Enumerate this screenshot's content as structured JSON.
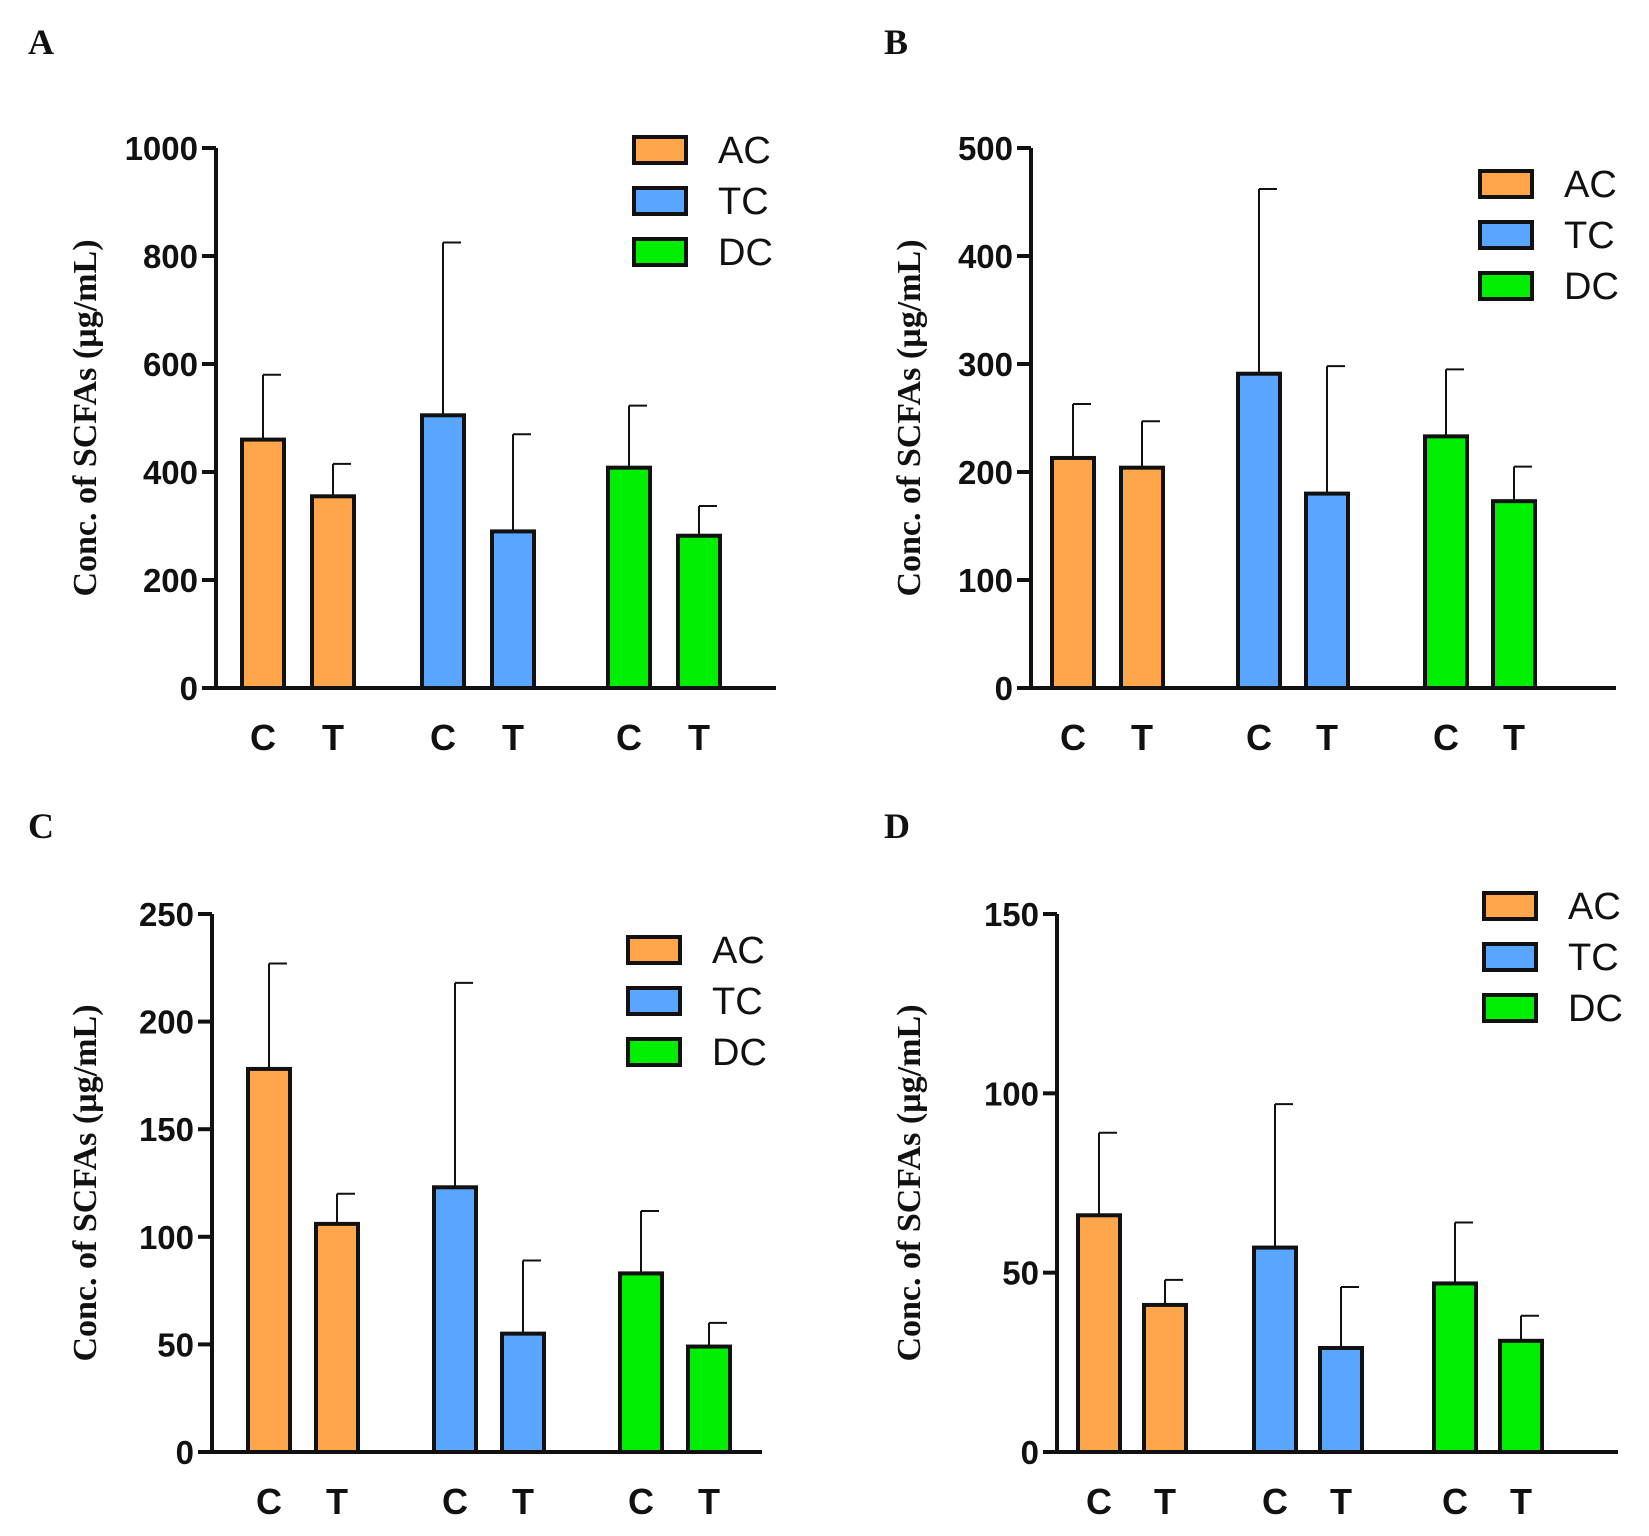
{
  "colors": {
    "AC": "#FFA54A",
    "TC": "#58A6FF",
    "DC": "#00EE00",
    "stroke": "#111111"
  },
  "panels": [
    {
      "letter": "A",
      "ylabel": "Conc. of SCFAs (µg/mL)",
      "chart_data": {
        "type": "bar",
        "ylim": [
          0,
          1000
        ],
        "yticks": [
          0,
          200,
          400,
          600,
          800,
          1000
        ],
        "legend": [
          "AC",
          "TC",
          "DC"
        ],
        "legend_position": "top-right",
        "bars": [
          {
            "group": "AC",
            "label": "C",
            "value": 460,
            "error": 120
          },
          {
            "group": "AC",
            "label": "T",
            "value": 355,
            "error": 60
          },
          {
            "group": "TC",
            "label": "C",
            "value": 505,
            "error": 320
          },
          {
            "group": "TC",
            "label": "T",
            "value": 290,
            "error": 180
          },
          {
            "group": "DC",
            "label": "C",
            "value": 408,
            "error": 115
          },
          {
            "group": "DC",
            "label": "T",
            "value": 282,
            "error": 55
          }
        ]
      }
    },
    {
      "letter": "B",
      "ylabel": "Conc. of SCFAs (µg/mL)",
      "chart_data": {
        "type": "bar",
        "ylim": [
          0,
          500
        ],
        "yticks": [
          0,
          100,
          200,
          300,
          400,
          500
        ],
        "legend": [
          "AC",
          "TC",
          "DC"
        ],
        "legend_position": "top-right",
        "bars": [
          {
            "group": "AC",
            "label": "C",
            "value": 213,
            "error": 50
          },
          {
            "group": "AC",
            "label": "T",
            "value": 204,
            "error": 43
          },
          {
            "group": "TC",
            "label": "C",
            "value": 291,
            "error": 171
          },
          {
            "group": "TC",
            "label": "T",
            "value": 180,
            "error": 118
          },
          {
            "group": "DC",
            "label": "C",
            "value": 233,
            "error": 62
          },
          {
            "group": "DC",
            "label": "T",
            "value": 173,
            "error": 32
          }
        ]
      }
    },
    {
      "letter": "C",
      "ylabel": "Conc. of SCFAs (µg/mL)",
      "chart_data": {
        "type": "bar",
        "ylim": [
          0,
          250
        ],
        "yticks": [
          0,
          50,
          100,
          150,
          200,
          250
        ],
        "legend": [
          "AC",
          "TC",
          "DC"
        ],
        "legend_position": "top-right",
        "bars": [
          {
            "group": "AC",
            "label": "C",
            "value": 178,
            "error": 49
          },
          {
            "group": "AC",
            "label": "T",
            "value": 106,
            "error": 14
          },
          {
            "group": "TC",
            "label": "C",
            "value": 123,
            "error": 95
          },
          {
            "group": "TC",
            "label": "T",
            "value": 55,
            "error": 34
          },
          {
            "group": "DC",
            "label": "C",
            "value": 83,
            "error": 29
          },
          {
            "group": "DC",
            "label": "T",
            "value": 49,
            "error": 11
          }
        ]
      }
    },
    {
      "letter": "D",
      "ylabel": "Conc. of SCFAs (µg/mL)",
      "chart_data": {
        "type": "bar",
        "ylim": [
          0,
          150
        ],
        "yticks": [
          0,
          50,
          100,
          150
        ],
        "legend": [
          "AC",
          "TC",
          "DC"
        ],
        "legend_position": "top-right",
        "bars": [
          {
            "group": "AC",
            "label": "C",
            "value": 66,
            "error": 23
          },
          {
            "group": "AC",
            "label": "T",
            "value": 41,
            "error": 7
          },
          {
            "group": "TC",
            "label": "C",
            "value": 57,
            "error": 40
          },
          {
            "group": "TC",
            "label": "T",
            "value": 29,
            "error": 17
          },
          {
            "group": "DC",
            "label": "C",
            "value": 47,
            "error": 17
          },
          {
            "group": "DC",
            "label": "T",
            "value": 31,
            "error": 7
          }
        ]
      }
    }
  ]
}
